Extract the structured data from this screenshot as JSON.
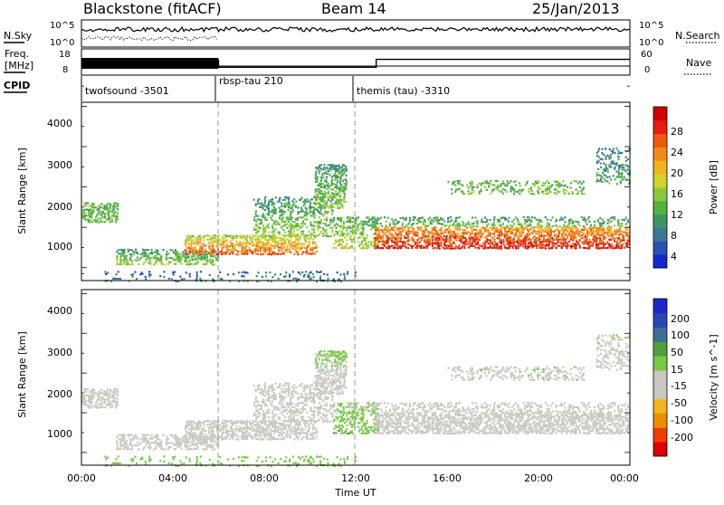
{
  "header": {
    "station": "Blackstone (fitACF)",
    "beam": "Beam 14",
    "date": "25/Jan/2013"
  },
  "noise_panel": {
    "left_label": "N.Sky",
    "right_label": "N.Search",
    "left_ticks": [
      "10^5",
      "10^0"
    ],
    "right_ticks": [
      "10^5",
      "10^0"
    ]
  },
  "freq_panel": {
    "left_label_1": "Freq.",
    "left_label_2": "[MHz]",
    "left_ticks": [
      "18",
      "8"
    ],
    "right_label": "Nave",
    "right_ticks": [
      "60",
      "0"
    ],
    "freq_high_until_hour": 6,
    "nave_steps": [
      {
        "from_hour": 0,
        "to_hour": 6,
        "level": 0.55
      },
      {
        "from_hour": 6,
        "to_hour": 12.9,
        "level": 0.3
      },
      {
        "from_hour": 12.9,
        "to_hour": 24,
        "level": 0.6
      }
    ]
  },
  "cpid": {
    "label": "CPID",
    "segments": [
      {
        "start_hour": 0,
        "name": "twofsound -3501"
      },
      {
        "start_hour": 6,
        "name": "rbsp-tau 210"
      },
      {
        "start_hour": 11.95,
        "name": "themis (tau) -3310"
      }
    ]
  },
  "x_axis": {
    "label": "Time UT",
    "ticks": [
      "00:00",
      "04:00",
      "08:00",
      "12:00",
      "16:00",
      "20:00",
      "00:00"
    ],
    "range_hours": [
      0,
      24
    ]
  },
  "power_panel": {
    "ylabel": "Slant Range [km]",
    "yticks": [
      "4000",
      "3000",
      "2000",
      "1000"
    ],
    "colorbar_label": "Power [dB]",
    "colorbar_ticks": [
      "28",
      "24",
      "20",
      "16",
      "12",
      "8",
      "4"
    ]
  },
  "velocity_panel": {
    "ylabel": "Slant Range [km]",
    "yticks": [
      "4000",
      "3000",
      "2000",
      "1000"
    ],
    "colorbar_label": "Velocity [m s^-1]",
    "colorbar_ticks": [
      "200",
      "100",
      "50",
      "15",
      "-15",
      "-50",
      "-100",
      "-200"
    ]
  },
  "chart_data": {
    "type": "heatmap",
    "title": "Blackstone (fitACF) Beam 14 25/Jan/2013",
    "xlabel": "Time UT",
    "ylabel": "Slant Range [km]",
    "xlim_hours": [
      0,
      24
    ],
    "ylim_km": [
      180,
      4600
    ],
    "power_scale_dB": [
      0,
      30
    ],
    "velocity_scale_ms": [
      -250,
      250
    ],
    "power_colors": [
      "#1428d2",
      "#2a50b4",
      "#3c7896",
      "#3c9664",
      "#50b43c",
      "#8cc83c",
      "#d2d228",
      "#f0b41e",
      "#f08c14",
      "#f05a0a",
      "#e61e0a",
      "#d20000"
    ],
    "velocity_colors": [
      "#dc0000",
      "#f03c00",
      "#f08c00",
      "#f0b41e",
      "#c8c8c0",
      "#c8c8c0",
      "#78c846",
      "#50a03c",
      "#3c6e96",
      "#2846b4",
      "#1e28c8"
    ],
    "echo_bands": [
      {
        "t0": 0.0,
        "t1": 1.6,
        "r0": 1650,
        "r1": 2150,
        "p0": 12,
        "p1": 12,
        "v0": 5,
        "v1": 5,
        "density": 0.7
      },
      {
        "t0": 1.5,
        "t1": 6.0,
        "r0": 600,
        "r1": 1000,
        "p0": 8,
        "p1": 14,
        "v0": -45,
        "v1": -45,
        "density": 0.55
      },
      {
        "t0": 4.5,
        "t1": 10.3,
        "r0": 850,
        "r1": 1350,
        "p0": 14,
        "p1": 24,
        "v0": -45,
        "v1": -45,
        "density": 0.65
      },
      {
        "t0": 7.5,
        "t1": 11.0,
        "r0": 1300,
        "r1": 2300,
        "p0": 8,
        "p1": 14,
        "v0": -45,
        "v1": -30,
        "density": 0.45
      },
      {
        "t0": 10.2,
        "t1": 11.6,
        "r0": 2000,
        "r1": 3100,
        "p0": 8,
        "p1": 14,
        "v0": -20,
        "v1": 40,
        "density": 0.6
      },
      {
        "t0": 11.0,
        "t1": 13.0,
        "r0": 1000,
        "r1": 1800,
        "p0": 10,
        "p1": 16,
        "v0": 60,
        "v1": 20,
        "density": 0.45
      },
      {
        "t0": 12.8,
        "t1": 24.0,
        "r0": 1000,
        "r1": 1550,
        "p0": 20,
        "p1": 27,
        "v0": 0,
        "v1": 0,
        "density": 0.7
      },
      {
        "t0": 12.8,
        "t1": 24.0,
        "r0": 1550,
        "r1": 1800,
        "p0": 8,
        "p1": 12,
        "v0": 5,
        "v1": 5,
        "density": 0.4
      },
      {
        "t0": 16.0,
        "t1": 22.0,
        "r0": 2350,
        "r1": 2700,
        "p0": 11,
        "p1": 13,
        "v0": 10,
        "v1": 10,
        "density": 0.35
      },
      {
        "t0": 22.5,
        "t1": 24.0,
        "r0": 2600,
        "r1": 3500,
        "p0": 6,
        "p1": 10,
        "v0": -10,
        "v1": 20,
        "density": 0.4
      },
      {
        "t0": 1.0,
        "t1": 12.0,
        "r0": 180,
        "r1": 450,
        "p0": 4,
        "p1": 8,
        "v0": 40,
        "v1": 40,
        "density": 0.18
      }
    ]
  }
}
